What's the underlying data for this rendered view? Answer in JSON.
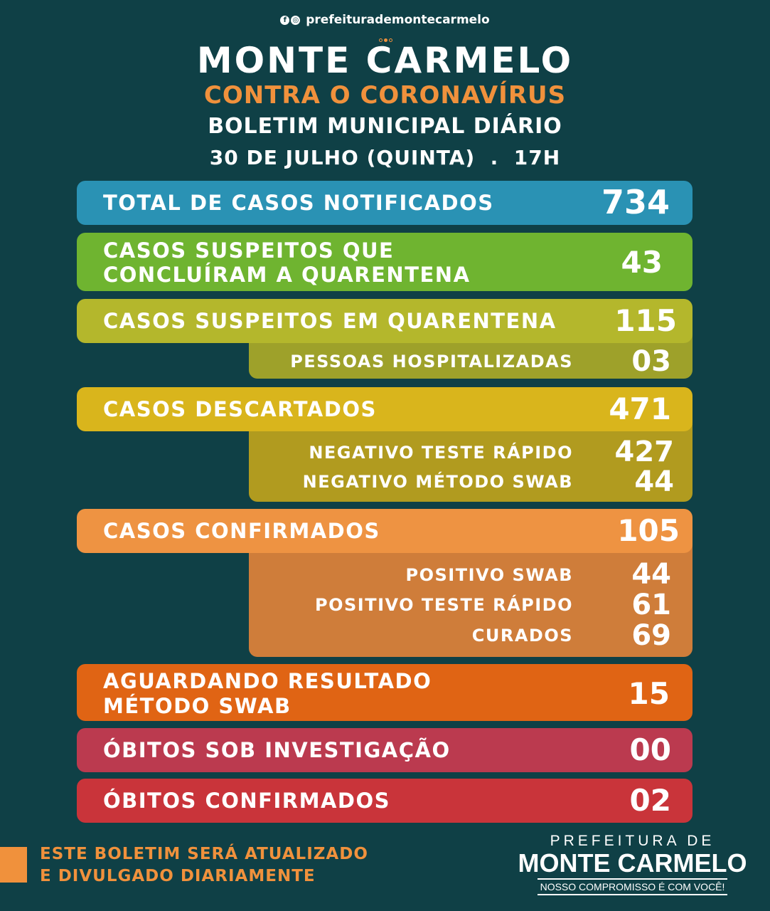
{
  "header": {
    "social_handle": "prefeiturademontecarmelo",
    "social_icon": "facebook-instagram-icon",
    "title": "MONTE CARMELO",
    "subtitle": "CONTRA O CORONAVÍRUS",
    "bulletin": "BOLETIM MUNICIPAL DIÁRIO",
    "date": "30 DE JULHO (QUINTA)  .  17H"
  },
  "colors": {
    "background": "#0f4046",
    "notified": "#2a92b4",
    "concluded": "#6fb430",
    "quarantine": "#b4b72c",
    "quarantine_sub": "#9ea12a",
    "discarded": "#d9b51c",
    "discarded_sub": "#b19b1f",
    "confirmed": "#ee9342",
    "confirmed_sub": "#cf7d3a",
    "awaiting": "#e06414",
    "deaths_investigation": "#bb3a4f",
    "deaths_confirmed": "#c9343a",
    "accent_orange": "#f0913c"
  },
  "stats": {
    "notified": {
      "label": "TOTAL DE CASOS NOTIFICADOS",
      "value": "734"
    },
    "concluded": {
      "label_line1": "CASOS SUSPEITOS QUE",
      "label_line2": "CONCLUÍRAM A QUARENTENA",
      "value": "43"
    },
    "quarantine": {
      "label": "CASOS SUSPEITOS EM QUARENTENA",
      "value": "115"
    },
    "hospitalized": {
      "label": "PESSOAS HOSPITALIZADAS",
      "value": "03"
    },
    "discarded": {
      "label": "CASOS DESCARTADOS",
      "value": "471"
    },
    "neg_rapid": {
      "label": "NEGATIVO TESTE RÁPIDO",
      "value": "427"
    },
    "neg_swab": {
      "label": "NEGATIVO MÉTODO SWAB",
      "value": "44"
    },
    "confirmed": {
      "label": "CASOS CONFIRMADOS",
      "value": "105"
    },
    "pos_swab": {
      "label": "POSITIVO SWAB",
      "value": "44"
    },
    "pos_rapid": {
      "label": "POSITIVO TESTE RÁPIDO",
      "value": "61"
    },
    "cured": {
      "label": "CURADOS",
      "value": "69"
    },
    "awaiting": {
      "label_line1": "AGUARDANDO RESULTADO",
      "label_line2": "MÉTODO SWAB",
      "value": "15"
    },
    "deaths_investigation": {
      "label": "ÓBITOS SOB INVESTIGAÇÃO",
      "value": "00"
    },
    "deaths_confirmed": {
      "label": "ÓBITOS CONFIRMADOS",
      "value": "02"
    }
  },
  "footer": {
    "note_line1": "ESTE BOLETIM SERÁ ATUALIZADO",
    "note_line2": "E DIVULGADO DIARIAMENTE",
    "logo_line1": "PREFEITURA DE",
    "logo_line2": "MONTE CARMELO",
    "logo_slogan": "NOSSO COMPROMISSO É COM VOCÊ!"
  }
}
